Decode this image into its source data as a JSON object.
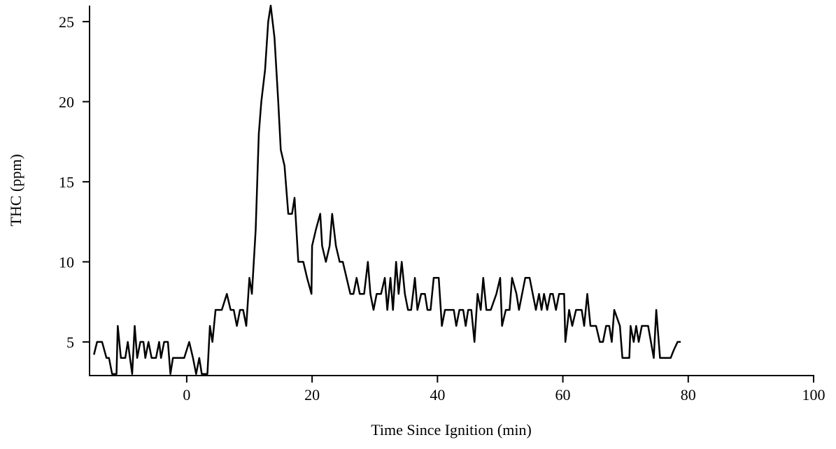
{
  "chart_data": {
    "type": "line",
    "x_label": "Time Since Ignition (min)",
    "y_label": "THC (ppm)",
    "xlim": [
      -15.5,
      100
    ],
    "ylim": [
      2.9,
      26
    ],
    "xticks": [
      0,
      20,
      40,
      60,
      80,
      100
    ],
    "yticks": [
      5,
      10,
      15,
      20,
      25
    ],
    "grid": false,
    "x": [
      -14.8,
      -14.3,
      -13.5,
      -12.8,
      -12.4,
      -11.9,
      -11.2,
      -11,
      -10.5,
      -9.8,
      -9.4,
      -8.7,
      -8.3,
      -7.9,
      -7.4,
      -6.9,
      -6.6,
      -6.1,
      -5.6,
      -4.9,
      -4.4,
      -4.1,
      -3.6,
      -3,
      -2.6,
      -2.2,
      -0.4,
      0.4,
      1,
      1.5,
      2,
      2.4,
      3.3,
      3.7,
      4.1,
      4.6,
      5.6,
      6.4,
      7,
      7.5,
      8,
      8.5,
      9,
      9.5,
      10,
      10.4,
      11,
      11.5,
      11.9,
      12.5,
      13,
      13.4,
      14,
      14.6,
      15,
      15.6,
      16.2,
      16.8,
      17.2,
      17.8,
      18.6,
      19.2,
      19.9,
      20,
      20.6,
      21.3,
      21.6,
      22.2,
      22.8,
      23.2,
      23.8,
      24.4,
      24.9,
      25.5,
      26.1,
      26.6,
      27.1,
      27.6,
      28.3,
      28.9,
      29.3,
      29.8,
      30.3,
      31,
      31.6,
      32,
      32.5,
      32.9,
      33.4,
      33.8,
      34.3,
      34.8,
      35.3,
      35.8,
      36.4,
      36.8,
      37.4,
      38,
      38.4,
      38.9,
      39.4,
      40.2,
      40.7,
      41.2,
      42,
      42.6,
      43,
      43.5,
      44.1,
      44.5,
      44.9,
      45.4,
      45.9,
      46.4,
      46.9,
      47.3,
      47.8,
      48.5,
      49.4,
      50,
      50.3,
      50.9,
      51.5,
      51.9,
      52.6,
      53,
      53.5,
      54,
      54.7,
      55.2,
      55.7,
      56.2,
      56.6,
      57,
      57.5,
      58,
      58.4,
      58.9,
      59.4,
      60.2,
      60.4,
      61,
      61.5,
      62.1,
      62.6,
      63,
      63.4,
      63.9,
      64.4,
      65.3,
      65.9,
      66.4,
      66.9,
      67.4,
      67.8,
      68.2,
      69.1,
      69.5,
      70,
      70.6,
      70.8,
      71.3,
      71.7,
      72.1,
      72.6,
      73.6,
      74.5,
      74.9,
      75.5,
      76.7,
      77.2,
      77.7,
      78.3,
      78.8
    ],
    "series": [
      {
        "color": "#000000",
        "values": [
          4.2,
          5,
          5,
          4,
          4,
          3,
          3,
          6,
          4,
          4,
          5,
          3,
          6,
          4,
          5,
          5,
          4,
          5,
          4,
          4,
          5,
          4,
          5,
          5,
          3,
          4,
          4,
          5,
          4,
          3,
          4,
          3,
          3,
          6,
          5,
          7,
          7,
          8,
          7,
          7,
          6,
          7,
          7,
          6,
          9,
          8,
          12,
          18,
          20,
          22,
          25,
          26,
          24,
          20,
          17,
          16,
          13,
          13,
          14,
          10,
          10,
          9,
          8,
          11,
          12,
          13,
          11,
          10,
          11,
          13,
          11,
          10,
          10,
          9,
          8,
          8,
          9,
          8,
          8,
          10,
          8,
          7,
          8,
          8,
          9,
          7,
          9,
          7,
          10,
          8,
          10,
          8,
          7,
          7,
          9,
          7,
          8,
          8,
          7,
          7,
          9,
          9,
          6,
          7,
          7,
          7,
          6,
          7,
          7,
          6,
          7,
          7,
          5,
          8,
          7,
          9,
          7,
          7,
          8,
          9,
          6,
          7,
          7,
          9,
          8,
          7,
          8,
          9,
          9,
          8,
          7,
          8,
          7,
          8,
          7,
          8,
          8,
          7,
          8,
          8,
          5,
          7,
          6,
          7,
          7,
          7,
          6,
          8,
          6,
          6,
          5,
          5,
          6,
          6,
          5,
          7,
          6,
          4,
          4,
          4,
          6,
          5,
          6,
          5,
          6,
          6,
          4,
          7,
          4,
          4,
          4,
          4.5,
          5,
          5
        ]
      }
    ]
  }
}
